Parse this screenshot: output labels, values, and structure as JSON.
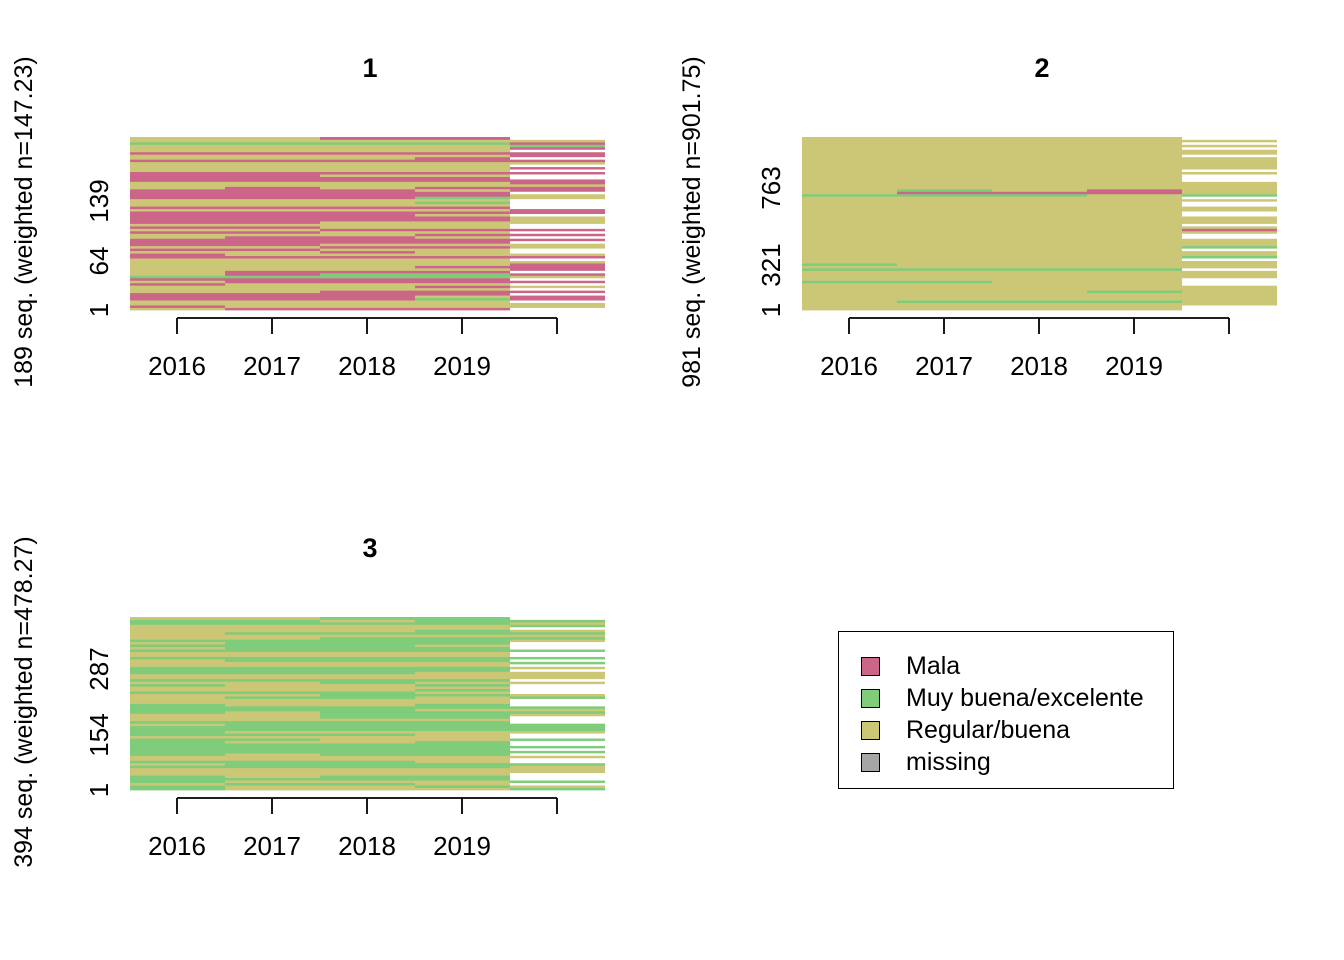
{
  "colors": {
    "Mala": "#CC6688",
    "Muy buena/excelente": "#7FCC7A",
    "Regular/buena": "#CCC777",
    "missing": "#A6A6A6",
    "void": "#FFFFFF"
  },
  "legend": {
    "items": [
      {
        "label": "Mala",
        "color": "#CC6688"
      },
      {
        "label": "Muy buena/excelente",
        "color": "#7FCC7A"
      },
      {
        "label": "Regular/buena",
        "color": "#CCC777"
      },
      {
        "label": "missing",
        "color": "#A6A6A6"
      }
    ]
  },
  "chart_data": [
    {
      "type": "heatmap",
      "title": "1",
      "ylabel": "189 seq. (weighted n=147.23)",
      "x_ticks": [
        "2016",
        "2017",
        "2018",
        "2019",
        ""
      ],
      "y_ticks": [
        "1",
        "64",
        "139"
      ],
      "n_sequences": 189,
      "weighted_n": 147.23,
      "state_shares": {
        "Mala": 0.48,
        "Muy buena/excelente": 0.05,
        "Regular/buena": 0.47
      }
    },
    {
      "type": "heatmap",
      "title": "2",
      "ylabel": "981 seq. (weighted n=901.75)",
      "x_ticks": [
        "2016",
        "2017",
        "2018",
        "2019",
        ""
      ],
      "y_ticks": [
        "1",
        "321",
        "763"
      ],
      "n_sequences": 981,
      "weighted_n": 901.75,
      "state_shares": {
        "Mala": 0.01,
        "Muy buena/excelente": 0.04,
        "Regular/buena": 0.95
      }
    },
    {
      "type": "heatmap",
      "title": "3",
      "ylabel": "394 seq. (weighted n=478.27)",
      "x_ticks": [
        "2016",
        "2017",
        "2018",
        "2019",
        ""
      ],
      "y_ticks": [
        "1",
        "154",
        "287"
      ],
      "n_sequences": 394,
      "weighted_n": 478.27,
      "state_shares": {
        "Mala": 0.01,
        "Muy buena/excelente": 0.49,
        "Regular/buena": 0.5
      }
    }
  ]
}
